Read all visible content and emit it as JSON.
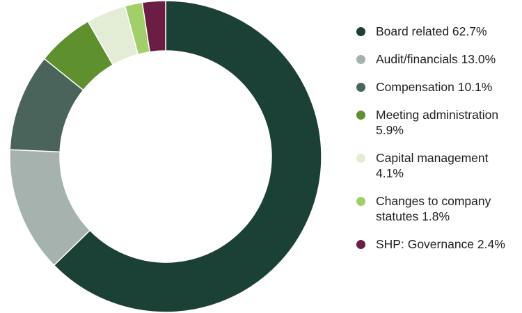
{
  "chart_data": {
    "type": "pie",
    "variant": "donut",
    "legend_position": "right",
    "slices": [
      {
        "label": "Board related 62.7%",
        "category": "Board related",
        "value": 62.7,
        "color": "#1b4035"
      },
      {
        "label": "Audit/financials 13.0%",
        "category": "Audit/financials",
        "value": 13.0,
        "color": "#a5b2ad"
      },
      {
        "label": "Compensation 10.1%",
        "category": "Compensation",
        "value": 10.1,
        "color": "#4a645c"
      },
      {
        "label": "Meeting administration 5.9%",
        "category": "Meeting administration",
        "value": 5.9,
        "color": "#5e902e"
      },
      {
        "label": "Capital management 4.1%",
        "category": "Capital management",
        "value": 4.1,
        "color": "#e3ecd5"
      },
      {
        "label": "Changes to company statutes 1.8%",
        "category": "Changes to company statutes",
        "value": 1.8,
        "color": "#a3cf6a"
      },
      {
        "label": "SHP: Governance 2.4%",
        "category": "SHP: Governance",
        "value": 2.4,
        "color": "#6b1d43"
      }
    ]
  }
}
